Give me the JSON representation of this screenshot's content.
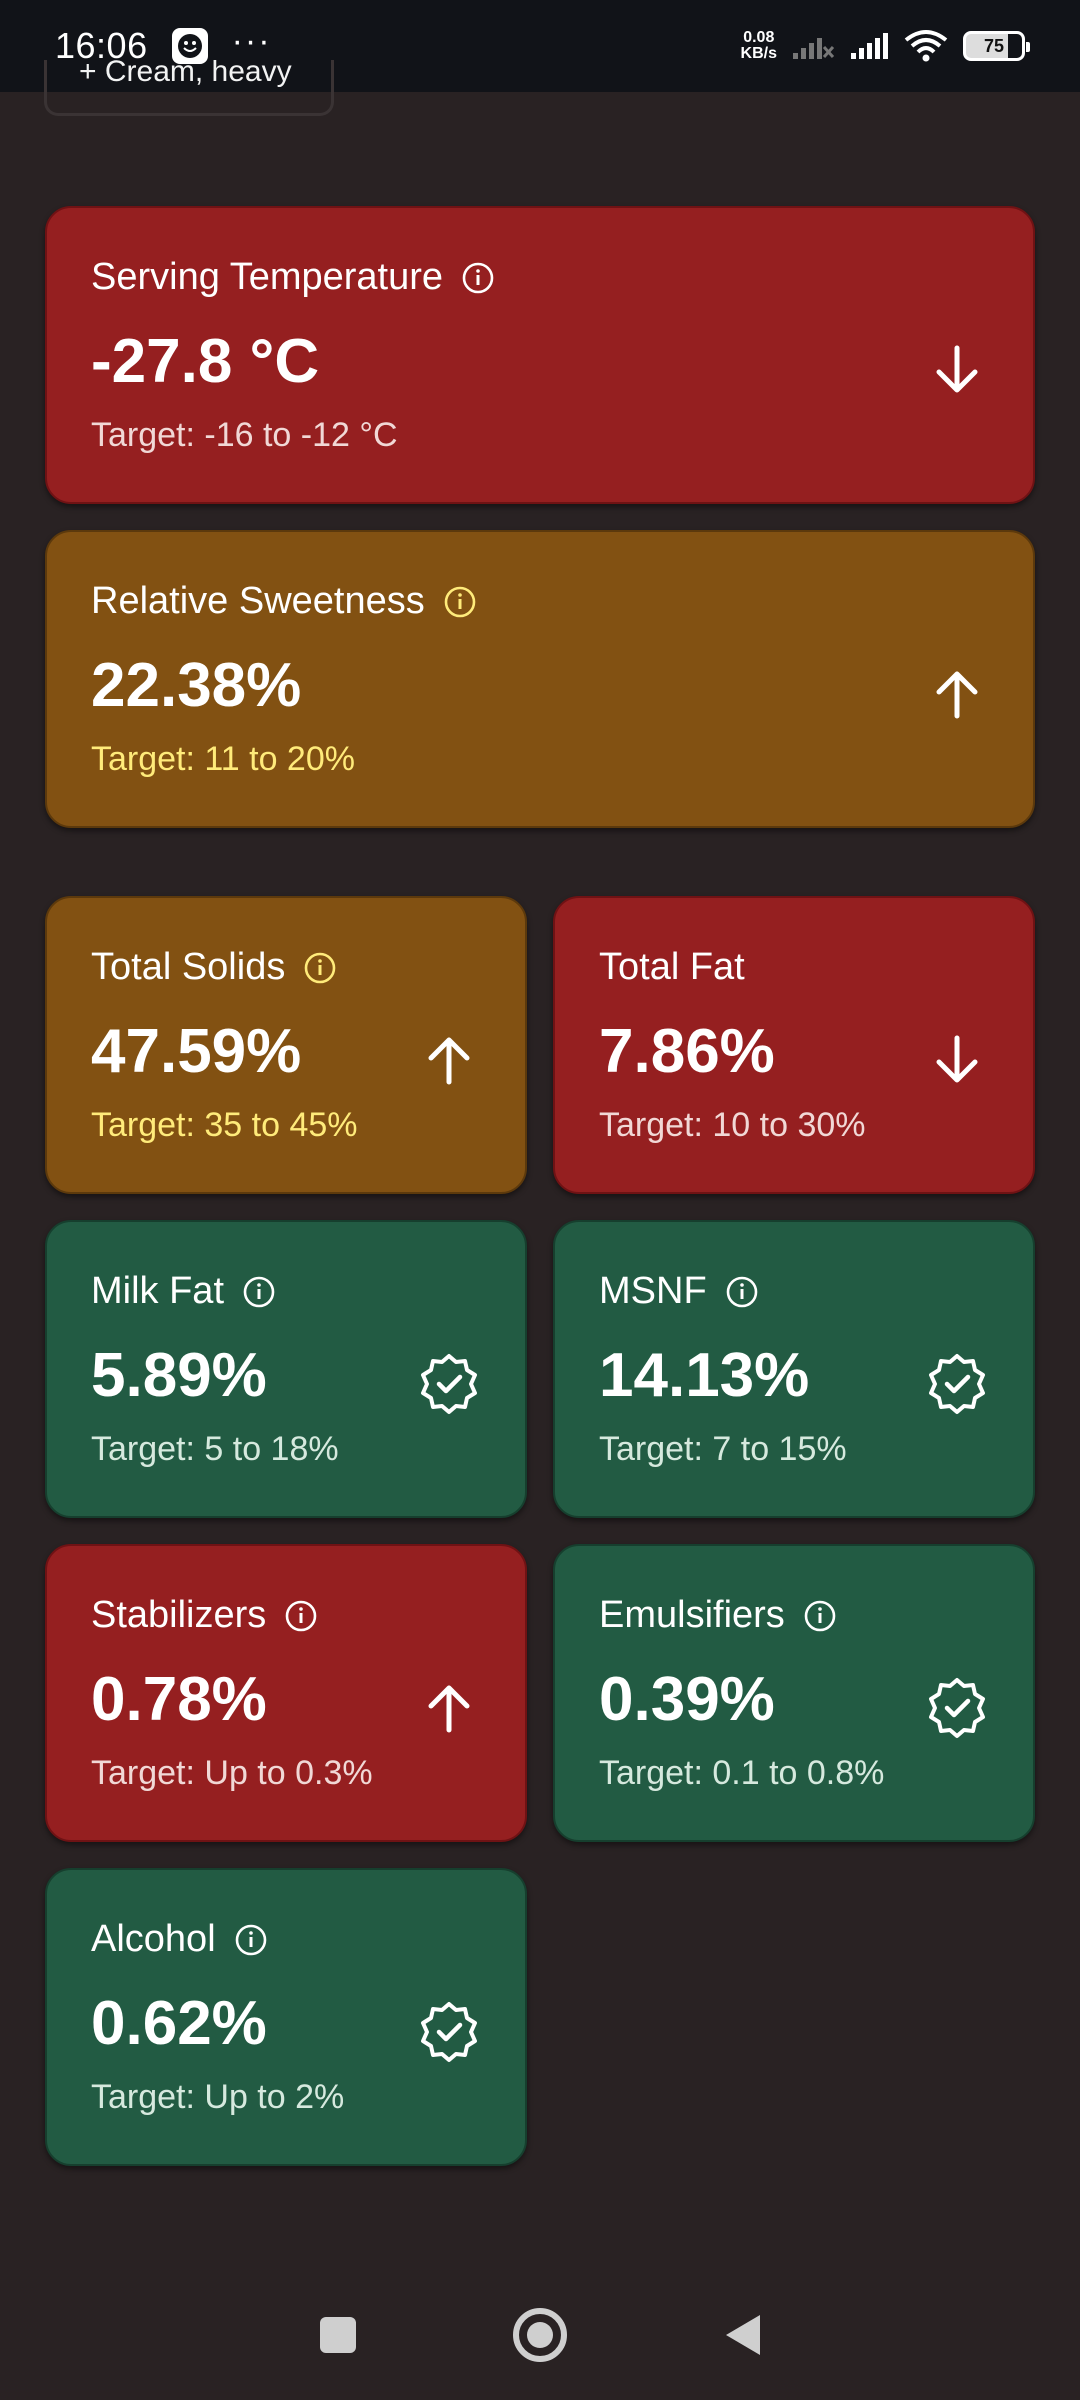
{
  "status_bar": {
    "time": "16:06",
    "more": "···",
    "net_speed_value": "0.08",
    "net_speed_unit": "KB/s",
    "battery": "75"
  },
  "chip_stub": {
    "label": "+ Cream, heavy"
  },
  "cards": {
    "serving_temperature": {
      "title": "Serving Temperature",
      "value": "-27.8 °C",
      "target": "Target: -16 to -12 °C",
      "status": "low",
      "color": "#951f20"
    },
    "relative_sweetness": {
      "title": "Relative Sweetness",
      "value": "22.38%",
      "target": "Target: 11 to 20%",
      "status": "high",
      "color": "#825112"
    },
    "total_solids": {
      "title": "Total Solids",
      "value": "47.59%",
      "target": "Target: 35 to 45%",
      "status": "high",
      "color": "#825112"
    },
    "total_fat": {
      "title": "Total Fat",
      "value": "7.86%",
      "target": "Target: 10 to 30%",
      "status": "low",
      "color": "#951f20"
    },
    "milk_fat": {
      "title": "Milk Fat",
      "value": "5.89%",
      "target": "Target: 5 to 18%",
      "status": "ok",
      "color": "#225b43"
    },
    "msnf": {
      "title": "MSNF",
      "value": "14.13%",
      "target": "Target: 7 to 15%",
      "status": "ok",
      "color": "#225b43"
    },
    "stabilizers": {
      "title": "Stabilizers",
      "value": "0.78%",
      "target": "Target: Up to 0.3%",
      "status": "high",
      "color": "#951f20"
    },
    "emulsifiers": {
      "title": "Emulsifiers",
      "value": "0.39%",
      "target": "Target: 0.1 to 0.8%",
      "status": "ok",
      "color": "#225b43"
    },
    "alcohol": {
      "title": "Alcohol",
      "value": "0.62%",
      "target": "Target: Up to 2%",
      "status": "ok",
      "color": "#225b43"
    }
  },
  "icons": {
    "info": "info-icon",
    "low": "arrow-down-icon",
    "high": "arrow-up-icon",
    "ok": "check-badge-icon"
  }
}
